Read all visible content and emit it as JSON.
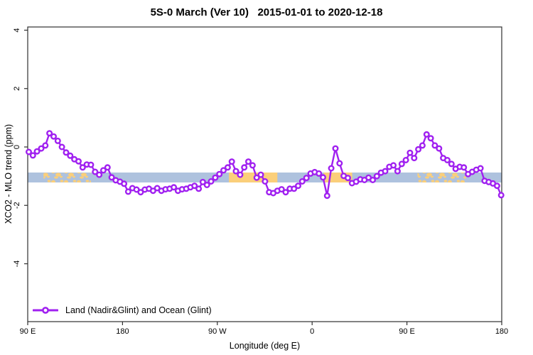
{
  "title": "5S-0 March (Ver 10)   2015-01-01 to 2020-12-18",
  "chart_data": {
    "type": "line",
    "title": "5S-0 March (Ver 10)   2015-01-01 to 2020-12-18",
    "xlabel": "Longitude (deg E)",
    "ylabel": "XCO2 - MLO trend (ppm)",
    "xlim_deg": [
      90,
      540
    ],
    "ylim": [
      -6,
      4.1
    ],
    "grid": false,
    "x_ticks": [
      {
        "deg": 90,
        "label": "90 E"
      },
      {
        "deg": 180,
        "label": "180"
      },
      {
        "deg": 270,
        "label": "90 W"
      },
      {
        "deg": 360,
        "label": "0"
      },
      {
        "deg": 450,
        "label": "90 E"
      },
      {
        "deg": 540,
        "label": "180"
      }
    ],
    "y_ticks": [
      {
        "v": 4,
        "label": "4"
      },
      {
        "v": 2,
        "label": "2"
      },
      {
        "v": 0,
        "label": "0"
      },
      {
        "v": -2,
        "label": "-2"
      },
      {
        "v": -4,
        "label": "-4"
      }
    ],
    "legend": {
      "label": "Land (Nadir&Glint) and Ocean (Glint)",
      "position": "bottom-left"
    },
    "band": {
      "description": "latitude-strip surface-type reference band",
      "top_ppm": -0.875,
      "bottom_ppm": -1.215,
      "ocean_color": "#AEC2DE",
      "land_color": "#FBCF7A",
      "land_segments_deg": [
        {
          "from": 105,
          "to": 150,
          "style": "speckled"
        },
        {
          "from": 281,
          "to": 327,
          "style": "solid"
        },
        {
          "from": 371,
          "to": 398,
          "style": "solid"
        },
        {
          "from": 460,
          "to": 506,
          "style": "speckled"
        }
      ]
    },
    "series": [
      {
        "name": "Land (Nadir&Glint) and Ocean (Glint)",
        "color": "#A020F0",
        "marker": "open-circle",
        "lon_start_deg": 91.0,
        "lon_step_deg": 3.934,
        "values": [
          -0.17,
          -0.29,
          -0.15,
          -0.05,
          0.05,
          0.47,
          0.36,
          0.21,
          0.0,
          -0.19,
          -0.3,
          -0.42,
          -0.49,
          -0.7,
          -0.6,
          -0.61,
          -0.85,
          -0.95,
          -0.8,
          -0.7,
          -1.04,
          -1.14,
          -1.19,
          -1.26,
          -1.53,
          -1.41,
          -1.46,
          -1.55,
          -1.46,
          -1.43,
          -1.5,
          -1.41,
          -1.5,
          -1.45,
          -1.43,
          -1.38,
          -1.5,
          -1.45,
          -1.43,
          -1.38,
          -1.33,
          -1.43,
          -1.2,
          -1.3,
          -1.18,
          -1.05,
          -0.93,
          -0.8,
          -0.7,
          -0.5,
          -0.83,
          -0.95,
          -0.7,
          -0.5,
          -0.63,
          -1.05,
          -0.95,
          -1.18,
          -1.55,
          -1.58,
          -1.5,
          -1.45,
          -1.55,
          -1.43,
          -1.43,
          -1.33,
          -1.18,
          -1.06,
          -0.91,
          -0.86,
          -0.91,
          -1.04,
          -1.67,
          -0.73,
          -0.05,
          -0.56,
          -0.99,
          -1.06,
          -1.24,
          -1.19,
          -1.11,
          -1.13,
          -1.05,
          -1.13,
          -1.0,
          -0.88,
          -0.83,
          -0.68,
          -0.63,
          -0.83,
          -0.58,
          -0.45,
          -0.2,
          -0.38,
          -0.08,
          0.05,
          0.43,
          0.3,
          0.05,
          -0.05,
          -0.38,
          -0.45,
          -0.58,
          -0.75,
          -0.68,
          -0.7,
          -0.93,
          -0.85,
          -0.78,
          -0.73,
          -1.16,
          -1.2,
          -1.25,
          -1.33,
          -1.65
        ]
      }
    ],
    "colors": {
      "line": "#A020F0",
      "axis": "#2F2F2F",
      "text": "#000000",
      "ocean_band": "#AEC2DE",
      "land_band": "#FBCF7A"
    }
  }
}
